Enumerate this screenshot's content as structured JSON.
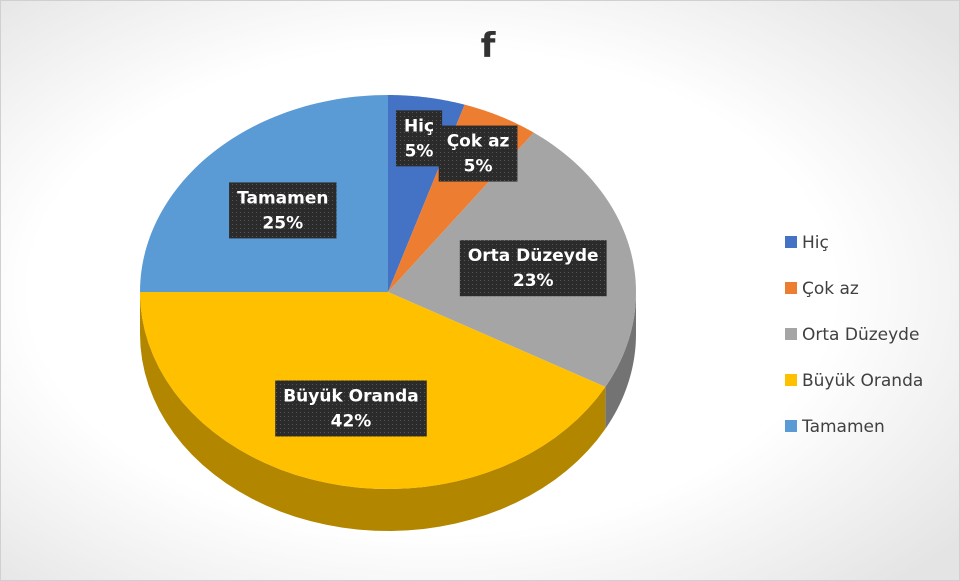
{
  "chart_data": {
    "type": "pie",
    "title": "f",
    "categories": [
      "Hiç",
      "Çok az",
      "Orta Düzeyde",
      "Büyük Oranda",
      "Tamamen"
    ],
    "values": [
      5,
      5,
      23,
      42,
      25
    ],
    "value_labels": [
      "5%",
      "5%",
      "23%",
      "42%",
      "25%"
    ],
    "colors": [
      "#4472c4",
      "#ed7d31",
      "#a5a5a5",
      "#ffc000",
      "#5b9bd5"
    ],
    "legend": "right"
  }
}
